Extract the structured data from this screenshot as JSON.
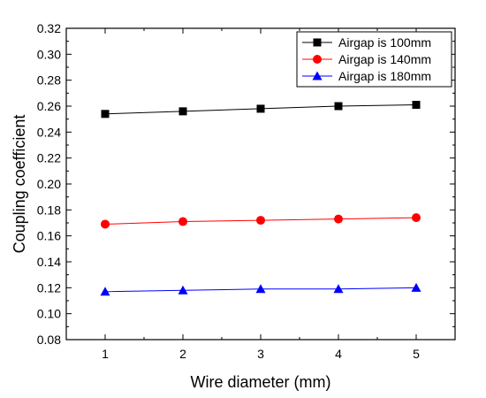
{
  "chart_data": {
    "type": "line",
    "xlabel": "Wire diameter (mm)",
    "ylabel": "Coupling coefficient",
    "xlim": [
      0.5,
      5.5
    ],
    "ylim": [
      0.08,
      0.32
    ],
    "xticks": [
      1,
      2,
      3,
      4,
      5
    ],
    "yticks": [
      0.08,
      0.1,
      0.12,
      0.14,
      0.16,
      0.18,
      0.2,
      0.22,
      0.24,
      0.26,
      0.28,
      0.3,
      0.32
    ],
    "x": [
      1,
      2,
      3,
      4,
      5
    ],
    "series": [
      {
        "name": "Airgap is 100mm",
        "values": [
          0.254,
          0.256,
          0.258,
          0.26,
          0.261
        ],
        "color": "#000000",
        "marker": "square"
      },
      {
        "name": "Airgap is 140mm",
        "values": [
          0.169,
          0.171,
          0.172,
          0.173,
          0.174
        ],
        "color": "#ff0000",
        "marker": "circle"
      },
      {
        "name": "Airgap is 180mm",
        "values": [
          0.117,
          0.118,
          0.119,
          0.119,
          0.12
        ],
        "color": "#0000ff",
        "marker": "triangle"
      }
    ],
    "legend": "top-right",
    "grid": false
  }
}
